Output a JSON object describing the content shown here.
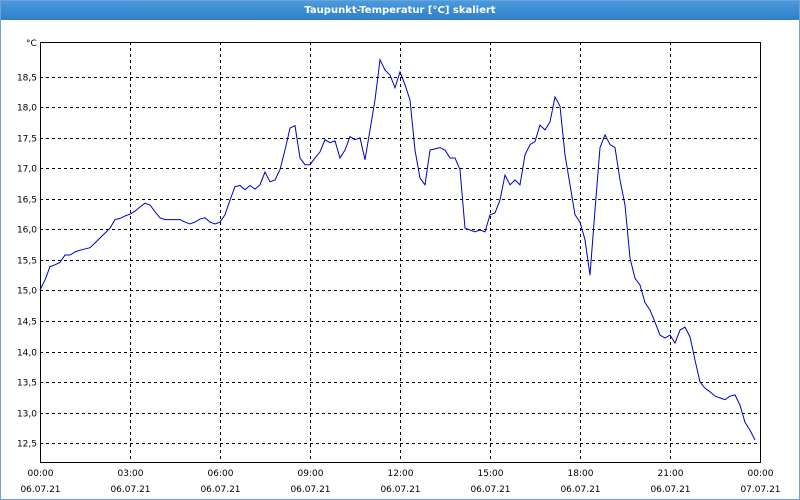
{
  "chart_data": {
    "type": "line",
    "title": "Taupunkt-Temperatur [°C] skaliert",
    "y_unit": "°C",
    "xlim": [
      0,
      1440
    ],
    "ylim": [
      12.19,
      19.07
    ],
    "grid": true,
    "xticks": [
      {
        "value": 0,
        "label": "00:00",
        "date": "06.07.21"
      },
      {
        "value": 180,
        "label": "03:00",
        "date": "06.07.21"
      },
      {
        "value": 360,
        "label": "06:00",
        "date": "06.07.21"
      },
      {
        "value": 540,
        "label": "09:00",
        "date": "06.07.21"
      },
      {
        "value": 720,
        "label": "12:00",
        "date": "06.07.21"
      },
      {
        "value": 900,
        "label": "15:00",
        "date": "06.07.21"
      },
      {
        "value": 1080,
        "label": "18:00",
        "date": "06.07.21"
      },
      {
        "value": 1260,
        "label": "21:00",
        "date": "06.07.21"
      },
      {
        "value": 1440,
        "label": "00:00",
        "date": "07.07.21"
      }
    ],
    "yticks": [
      {
        "value": 12.5,
        "label": "12,5"
      },
      {
        "value": 13,
        "label": "13,0"
      },
      {
        "value": 13.5,
        "label": "13,5"
      },
      {
        "value": 14,
        "label": "14,0"
      },
      {
        "value": 14.5,
        "label": "14,5"
      },
      {
        "value": 15,
        "label": "15,0"
      },
      {
        "value": 15.5,
        "label": "15,5"
      },
      {
        "value": 16,
        "label": "16,0"
      },
      {
        "value": 16.5,
        "label": "16,5"
      },
      {
        "value": 17,
        "label": "17,0"
      },
      {
        "value": 17.5,
        "label": "17,5"
      },
      {
        "value": 18,
        "label": "18,0"
      },
      {
        "value": 18.5,
        "label": "18,5"
      }
    ],
    "x": [
      0,
      10,
      20,
      30,
      40,
      50,
      60,
      70,
      80,
      90,
      100,
      110,
      120,
      130,
      140,
      150,
      160,
      170,
      180,
      190,
      200,
      210,
      220,
      230,
      240,
      250,
      260,
      270,
      280,
      290,
      300,
      310,
      320,
      330,
      340,
      350,
      360,
      370,
      380,
      390,
      400,
      410,
      420,
      430,
      440,
      450,
      460,
      470,
      480,
      490,
      500,
      510,
      520,
      530,
      540,
      550,
      560,
      570,
      580,
      590,
      600,
      610,
      620,
      630,
      640,
      650,
      660,
      670,
      680,
      690,
      700,
      710,
      720,
      730,
      740,
      750,
      760,
      770,
      780,
      790,
      800,
      810,
      820,
      830,
      840,
      850,
      860,
      870,
      880,
      890,
      900,
      910,
      920,
      930,
      940,
      950,
      960,
      970,
      980,
      990,
      1000,
      1010,
      1020,
      1030,
      1040,
      1050,
      1060,
      1070,
      1080,
      1090,
      1100,
      1110,
      1120,
      1130,
      1140,
      1150,
      1160,
      1170,
      1180,
      1190,
      1200,
      1210,
      1220,
      1230,
      1240,
      1250,
      1260,
      1270,
      1280,
      1290,
      1300,
      1310,
      1320,
      1330,
      1340,
      1350,
      1360,
      1370,
      1380,
      1390,
      1400,
      1410,
      1420,
      1430
    ],
    "series": [
      {
        "name": "Taupunkt-Temperatur",
        "color": "#0000c0",
        "values": [
          15.01,
          15.17,
          15.39,
          15.42,
          15.46,
          15.58,
          15.58,
          15.63,
          15.66,
          15.68,
          15.7,
          15.78,
          15.86,
          15.94,
          16.02,
          16.16,
          16.18,
          16.22,
          16.25,
          16.3,
          16.37,
          16.43,
          16.4,
          16.29,
          16.19,
          16.16,
          16.16,
          16.16,
          16.16,
          16.12,
          16.09,
          16.12,
          16.17,
          16.19,
          16.12,
          16.09,
          16.12,
          16.24,
          16.48,
          16.7,
          16.72,
          16.65,
          16.72,
          16.66,
          16.73,
          16.94,
          16.78,
          16.81,
          16.98,
          17.3,
          17.66,
          17.7,
          17.17,
          17.06,
          17.06,
          17.17,
          17.27,
          17.47,
          17.42,
          17.45,
          17.17,
          17.3,
          17.52,
          17.47,
          17.5,
          17.14,
          17.63,
          18.12,
          18.78,
          18.61,
          18.53,
          18.32,
          18.58,
          18.37,
          18.12,
          17.3,
          16.84,
          16.73,
          17.3,
          17.32,
          17.34,
          17.3,
          17.17,
          17.17,
          16.98,
          16.02,
          15.99,
          15.96,
          15.99,
          15.96,
          16.24,
          16.27,
          16.48,
          16.89,
          16.73,
          16.81,
          16.73,
          17.22,
          17.39,
          17.44,
          17.71,
          17.63,
          17.76,
          18.17,
          18.02,
          17.22,
          16.73,
          16.24,
          16.12,
          15.83,
          15.25,
          16.32,
          17.34,
          17.55,
          17.39,
          17.34,
          16.81,
          16.4,
          15.53,
          15.2,
          15.09,
          14.8,
          14.68,
          14.48,
          14.27,
          14.22,
          14.27,
          14.14,
          14.35,
          14.4,
          14.24,
          13.86,
          13.5,
          13.4,
          13.34,
          13.27,
          13.24,
          13.21,
          13.27,
          13.29,
          13.12,
          12.84,
          12.71,
          12.55
        ]
      }
    ]
  }
}
